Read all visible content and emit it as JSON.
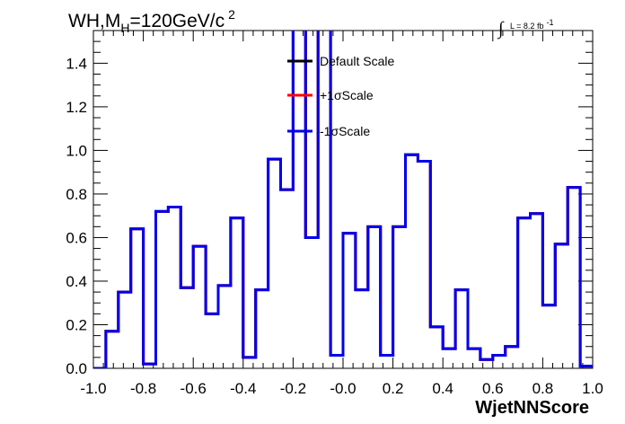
{
  "chart_data": {
    "type": "line",
    "title": {
      "main": "WH,M",
      "sub": "H",
      "rest": "=120GeV/c",
      "sup": "2"
    },
    "lumi": {
      "integral": "∫",
      "text": "L = 8.2 fb",
      "sup": "-1"
    },
    "xlabel": "WjetNNScore",
    "ylabel": "",
    "xlim": [
      -1.0,
      1.0
    ],
    "ylim": [
      0.0,
      1.55
    ],
    "x_ticks": [
      "-1.0",
      "-0.8",
      "-0.6",
      "-0.4",
      "-0.2",
      "-0.0",
      "0.2",
      "0.4",
      "0.6",
      "0.8",
      "1.0"
    ],
    "y_ticks": [
      "0.0",
      "0.2",
      "0.4",
      "0.6",
      "0.8",
      "1.0",
      "1.2",
      "1.4"
    ],
    "legend_position": "top-center",
    "bin_edges": [
      -1.0,
      -0.95,
      -0.9,
      -0.85,
      -0.8,
      -0.75,
      -0.7,
      -0.65,
      -0.6,
      -0.55,
      -0.5,
      -0.45,
      -0.4,
      -0.35,
      -0.3,
      -0.25,
      -0.2,
      -0.15,
      -0.1,
      -0.05,
      0.0,
      0.05,
      0.1,
      0.15,
      0.2,
      0.25,
      0.3,
      0.35,
      0.4,
      0.45,
      0.5,
      0.55,
      0.6,
      0.65,
      0.7,
      0.75,
      0.8,
      0.85,
      0.9,
      0.95,
      1.0
    ],
    "series": [
      {
        "name": "Default Scale",
        "color": "#000000",
        "values": [
          0.0,
          0.17,
          0.35,
          0.64,
          0.02,
          0.72,
          0.74,
          0.37,
          0.56,
          0.25,
          0.38,
          0.69,
          0.05,
          0.36,
          0.96,
          0.82,
          1.6,
          0.6,
          1.6,
          0.06,
          0.62,
          0.36,
          0.65,
          0.06,
          0.65,
          0.98,
          0.95,
          0.19,
          0.09,
          0.36,
          0.09,
          0.04,
          0.06,
          0.1,
          0.69,
          0.71,
          0.29,
          0.57,
          0.83,
          0.01
        ]
      },
      {
        "name": "+1σScale",
        "color": "#ff0000",
        "values": [
          0.0,
          0.17,
          0.35,
          0.64,
          0.02,
          0.72,
          0.74,
          0.37,
          0.56,
          0.25,
          0.38,
          0.69,
          0.05,
          0.36,
          0.96,
          0.82,
          1.6,
          0.6,
          1.6,
          0.06,
          0.62,
          0.36,
          0.65,
          0.06,
          0.65,
          0.98,
          0.95,
          0.19,
          0.09,
          0.36,
          0.09,
          0.04,
          0.06,
          0.1,
          0.69,
          0.71,
          0.29,
          0.57,
          0.83,
          0.01
        ]
      },
      {
        "name": "-1σScale",
        "color": "#0000ee",
        "values": [
          0.0,
          0.17,
          0.35,
          0.64,
          0.02,
          0.72,
          0.74,
          0.37,
          0.56,
          0.25,
          0.38,
          0.69,
          0.05,
          0.36,
          0.96,
          0.82,
          1.6,
          0.6,
          1.6,
          0.06,
          0.62,
          0.36,
          0.65,
          0.06,
          0.65,
          0.98,
          0.95,
          0.19,
          0.09,
          0.36,
          0.09,
          0.04,
          0.06,
          0.1,
          0.69,
          0.71,
          0.29,
          0.57,
          0.83,
          0.01
        ]
      }
    ]
  }
}
